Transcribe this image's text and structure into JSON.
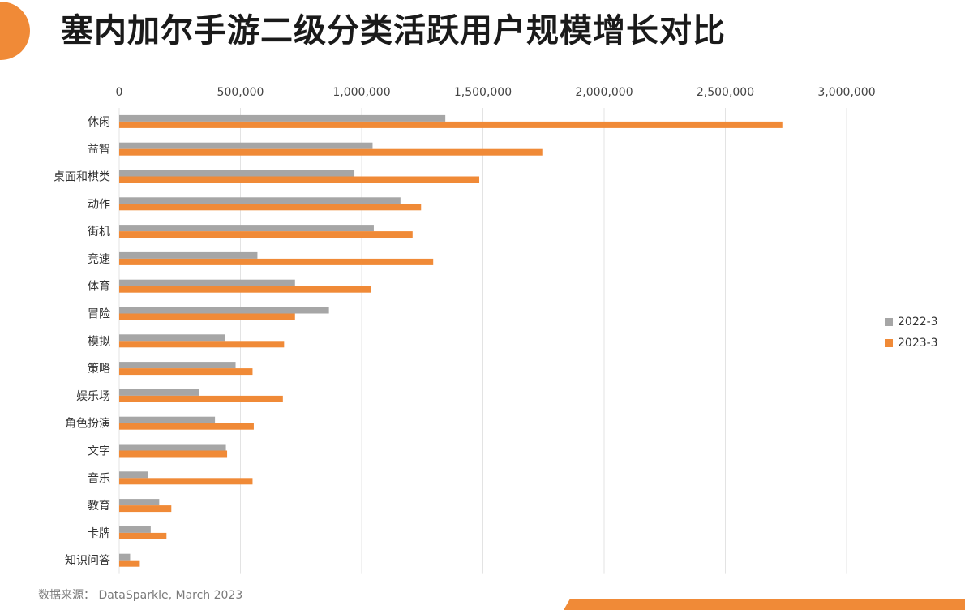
{
  "title": "塞内加尔手游二级分类活跃用户规模增长对比",
  "source": "数据来源： DataSparkle, March 2023",
  "colors": {
    "accent": "#f08a37",
    "gray": "#a6a6a6",
    "grid": "#e3e3e3"
  },
  "chart_data": {
    "type": "bar",
    "orientation": "horizontal",
    "categories": [
      "休闲",
      "益智",
      "桌面和棋类",
      "动作",
      "街机",
      "竞速",
      "体育",
      "冒险",
      "模拟",
      "策略",
      "娱乐场",
      "角色扮演",
      "文字",
      "音乐",
      "教育",
      "卡牌",
      "知识问答"
    ],
    "series": [
      {
        "name": "2022-3",
        "color": "#a6a6a6",
        "values": [
          1345000,
          1045000,
          970000,
          1160000,
          1050000,
          570000,
          725000,
          865000,
          435000,
          480000,
          330000,
          395000,
          440000,
          120000,
          165000,
          130000,
          45000
        ]
      },
      {
        "name": "2023-3",
        "color": "#f08a37",
        "values": [
          2735000,
          1745000,
          1485000,
          1245000,
          1210000,
          1295000,
          1040000,
          725000,
          680000,
          550000,
          675000,
          555000,
          445000,
          550000,
          215000,
          195000,
          85000
        ]
      }
    ],
    "xlim": [
      0,
      3000000
    ],
    "xticks": [
      0,
      500000,
      1000000,
      1500000,
      2000000,
      2500000,
      3000000
    ],
    "xtick_labels": [
      "0",
      "500,000",
      "1,000,000",
      "1,500,000",
      "2,000,000",
      "2,500,000",
      "3,000,000"
    ],
    "grid": true,
    "legend_position": "right"
  }
}
